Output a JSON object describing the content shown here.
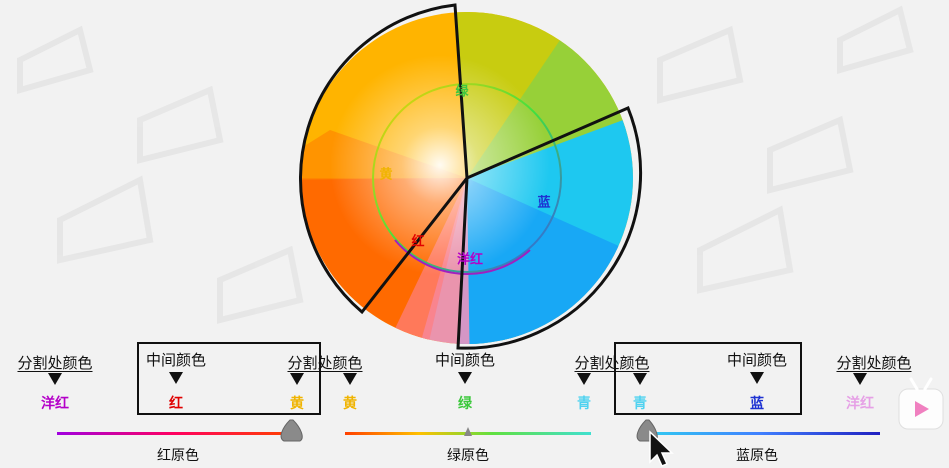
{
  "wheel_labels": {
    "green": "绿",
    "yellow": "黄",
    "blue": "蓝",
    "red": "红",
    "magenta": "洋红"
  },
  "header_labels": {
    "split1": "分割处颜色",
    "mid1": "中间颜色",
    "split2": "分割处颜色",
    "mid2": "中间颜色",
    "split3": "分割处颜色",
    "mid3": "中间颜色",
    "split4": "分割处颜色"
  },
  "color_names": [
    {
      "text": "洋红",
      "color": "#b400c8"
    },
    {
      "text": "红",
      "color": "#e00000"
    },
    {
      "text": "黄",
      "color": "#f0b400"
    },
    {
      "text": "黄",
      "color": "#f0b400"
    },
    {
      "text": "绿",
      "color": "#3cc83c"
    },
    {
      "text": "青",
      "color": "#50d2f0"
    },
    {
      "text": "青",
      "color": "#50d2f0"
    },
    {
      "text": "蓝",
      "color": "#1e32d2"
    },
    {
      "text": "洋红",
      "color": "#e6a0e6"
    }
  ],
  "bottom_labels": {
    "red": "红原色",
    "green": "绿原色",
    "blue": "蓝原色"
  },
  "colors": {
    "magenta": "#c000d0",
    "red": "#e00000",
    "yellow": "#ffd000",
    "green": "#40d040",
    "cyan": "#40d8f0",
    "blue": "#1e2ad2"
  }
}
